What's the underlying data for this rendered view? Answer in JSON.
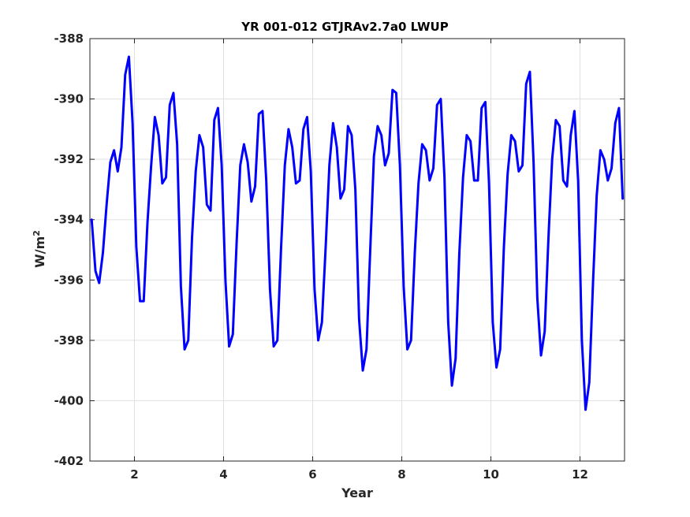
{
  "chart_data": {
    "type": "line",
    "title": "YR 001-012 GTJRAv2.7a0 LWUP",
    "xlabel": "Year",
    "ylabel_base": "W/m",
    "ylabel_sup": "2",
    "xlim": [
      1,
      13
    ],
    "ylim": [
      -402,
      -388
    ],
    "xticks": [
      2,
      4,
      6,
      8,
      10,
      12
    ],
    "yticks": [
      -402,
      -400,
      -398,
      -396,
      -394,
      -392,
      -390,
      -388
    ],
    "grid": true,
    "line_color": "#0000ff",
    "grid_color": "#e0e0e0",
    "series": [
      {
        "x": [
          1.04,
          1.125,
          1.208,
          1.292,
          1.375,
          1.458,
          1.542,
          1.625,
          1.708,
          1.792,
          1.875,
          1.958,
          2.042,
          2.125,
          2.208,
          2.292,
          2.375,
          2.458,
          2.542,
          2.625,
          2.708,
          2.792,
          2.875,
          2.958,
          3.042,
          3.125,
          3.208,
          3.292,
          3.375,
          3.458,
          3.542,
          3.625,
          3.708,
          3.792,
          3.875,
          3.958,
          4.042,
          4.125,
          4.208,
          4.292,
          4.375,
          4.458,
          4.542,
          4.625,
          4.708,
          4.792,
          4.875,
          4.958,
          5.042,
          5.125,
          5.208,
          5.292,
          5.375,
          5.458,
          5.542,
          5.625,
          5.708,
          5.792,
          5.875,
          5.958,
          6.042,
          6.125,
          6.208,
          6.292,
          6.375,
          6.458,
          6.542,
          6.625,
          6.708,
          6.792,
          6.875,
          6.958,
          7.042,
          7.125,
          7.208,
          7.292,
          7.375,
          7.458,
          7.542,
          7.625,
          7.708,
          7.792,
          7.875,
          7.958,
          8.042,
          8.125,
          8.208,
          8.292,
          8.375,
          8.458,
          8.542,
          8.625,
          8.708,
          8.792,
          8.875,
          8.958,
          9.042,
          9.125,
          9.208,
          9.292,
          9.375,
          9.458,
          9.542,
          9.625,
          9.708,
          9.792,
          9.875,
          9.958,
          10.042,
          10.125,
          10.208,
          10.292,
          10.375,
          10.458,
          10.542,
          10.625,
          10.708,
          10.792,
          10.875,
          10.958,
          11.042,
          11.125,
          11.208,
          11.292,
          11.375,
          11.458,
          11.542,
          11.625,
          11.708,
          11.792,
          11.875,
          11.958,
          12.042,
          12.125,
          12.208,
          12.292,
          12.375,
          12.458,
          12.542,
          12.625,
          12.708,
          12.792,
          12.875,
          12.958
        ],
        "y": [
          -394.0,
          -395.7,
          -396.1,
          -395.1,
          -393.5,
          -392.1,
          -391.7,
          -392.4,
          -391.6,
          -389.2,
          -388.6,
          -390.8,
          -394.9,
          -396.7,
          -396.7,
          -394.1,
          -392.2,
          -390.6,
          -391.2,
          -392.8,
          -392.6,
          -390.2,
          -389.8,
          -391.5,
          -396.2,
          -398.3,
          -398.0,
          -394.6,
          -392.4,
          -391.2,
          -391.6,
          -393.5,
          -393.7,
          -390.7,
          -390.3,
          -392.2,
          -396.0,
          -398.2,
          -397.8,
          -394.8,
          -392.2,
          -391.5,
          -392.1,
          -393.4,
          -392.9,
          -390.5,
          -390.4,
          -392.7,
          -396.3,
          -398.2,
          -398.0,
          -394.9,
          -392.2,
          -391.0,
          -391.6,
          -392.8,
          -392.7,
          -391.0,
          -390.6,
          -392.4,
          -396.3,
          -398.0,
          -397.4,
          -394.9,
          -392.2,
          -390.8,
          -391.6,
          -393.3,
          -393.0,
          -390.9,
          -391.2,
          -393.0,
          -397.3,
          -399.0,
          -398.3,
          -395.0,
          -391.9,
          -390.9,
          -391.2,
          -392.2,
          -391.8,
          -389.7,
          -389.8,
          -392.2,
          -396.2,
          -398.3,
          -398.0,
          -395.1,
          -392.8,
          -391.5,
          -391.7,
          -392.7,
          -392.3,
          -390.2,
          -390.0,
          -392.6,
          -397.4,
          -399.5,
          -398.6,
          -395.1,
          -392.6,
          -391.2,
          -391.4,
          -392.7,
          -392.7,
          -390.3,
          -390.1,
          -392.8,
          -397.4,
          -398.9,
          -398.3,
          -394.9,
          -392.5,
          -391.2,
          -391.4,
          -392.4,
          -392.2,
          -389.5,
          -389.1,
          -392.1,
          -396.6,
          -398.5,
          -397.7,
          -394.6,
          -392.0,
          -390.7,
          -390.9,
          -392.7,
          -392.9,
          -391.2,
          -390.4,
          -392.7,
          -398.0,
          -400.3,
          -399.4,
          -396.1,
          -393.2,
          -391.7,
          -392.0,
          -392.7,
          -392.3,
          -390.8,
          -390.3,
          -393.3
        ]
      }
    ]
  }
}
